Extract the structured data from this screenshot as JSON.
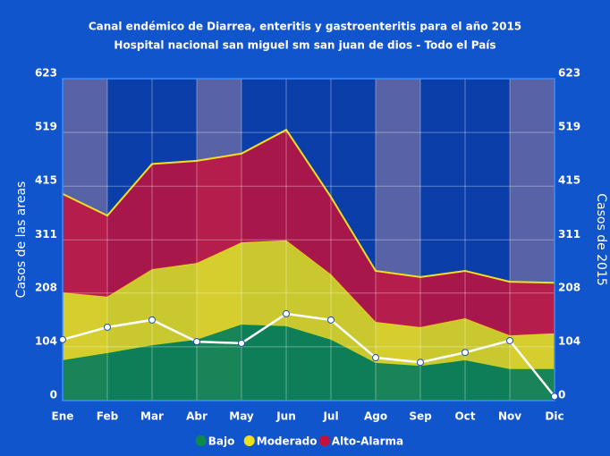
{
  "chart_data": {
    "type": "area",
    "title": "Canal endémico de Diarrea, enteritis y gastroenteritis para el año 2015",
    "subtitle": "Hospital nacional san miguel  sm san juan de dios - Todo el País",
    "ylabel": "Casos de las areas",
    "y2label": "Casos de 2015",
    "categories": [
      "Ene",
      "Feb",
      "Mar",
      "Abr",
      "May",
      "Jun",
      "Jul",
      "Ago",
      "Sep",
      "Oct",
      "Nov",
      "Dic"
    ],
    "series": [
      {
        "name": "Bajo",
        "color": "#0e8a4a",
        "values": [
          78,
          92,
          107,
          118,
          147,
          144,
          118,
          73,
          67,
          78,
          61,
          61
        ]
      },
      {
        "name": "Moderado",
        "color": "#ece01a",
        "values": [
          131,
          109,
          147,
          148,
          159,
          166,
          126,
          79,
          75,
          81,
          65,
          69
        ]
      },
      {
        "name": "Alto-Alarma",
        "color": "#c4103c",
        "values": [
          191,
          157,
          204,
          198,
          172,
          214,
          150,
          99,
          97,
          92,
          104,
          98
        ]
      },
      {
        "type": "line",
        "axis": "y2",
        "color": "#ffffff",
        "values": [
          118,
          142,
          156,
          114,
          111,
          168,
          156,
          83,
          74,
          93,
          116,
          8
        ]
      }
    ],
    "stacked": true,
    "ylim": [
      0,
      623
    ],
    "yticks": [
      0,
      104,
      208,
      311,
      415,
      519,
      623
    ],
    "y2lim": [
      0,
      623
    ],
    "y2ticks": [
      0,
      104,
      208,
      311,
      415,
      519,
      623
    ],
    "grid": true,
    "legend": "bottom"
  }
}
